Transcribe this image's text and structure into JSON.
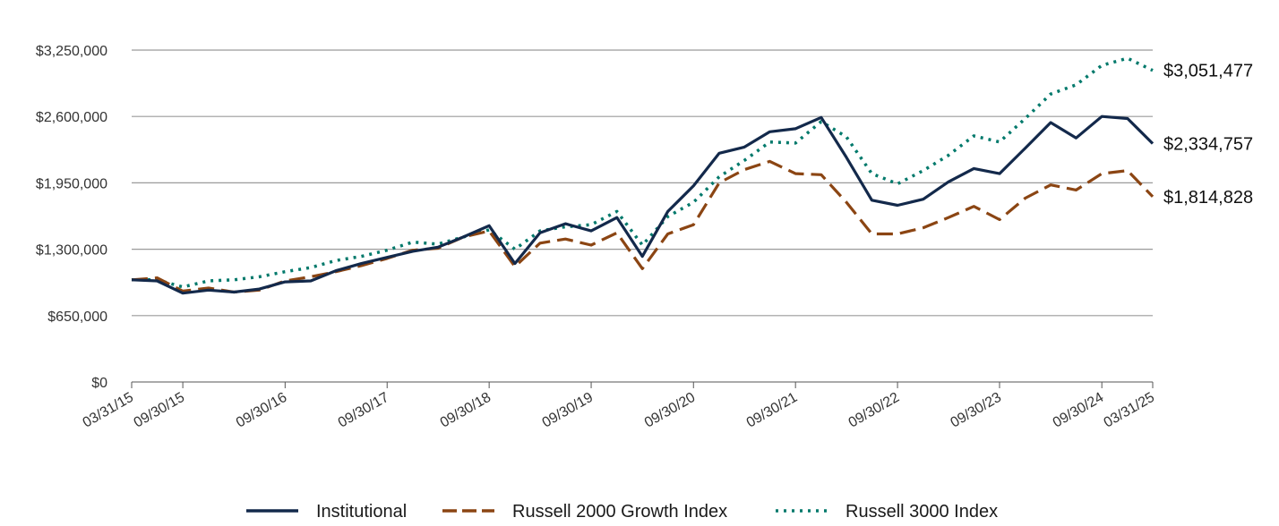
{
  "chart_data": {
    "type": "line",
    "title": "",
    "xlabel": "",
    "ylabel": "",
    "x_tick_labels": [
      "03/31/15",
      "09/30/15",
      "09/30/16",
      "09/30/17",
      "09/30/18",
      "09/30/19",
      "09/30/20",
      "09/30/21",
      "09/30/22",
      "09/30/23",
      "09/30/24",
      "03/31/25"
    ],
    "y_tick_labels": [
      "$0",
      "$650,000",
      "$1,300,000",
      "$1,950,000",
      "$2,600,000",
      "$3,250,000"
    ],
    "ylim": [
      0,
      3250000
    ],
    "grid": true,
    "legend_position": "bottom",
    "x": [
      "03/31/15",
      "06/30/15",
      "09/30/15",
      "12/31/15",
      "03/31/16",
      "06/30/16",
      "09/30/16",
      "12/31/16",
      "03/31/17",
      "06/30/17",
      "09/30/17",
      "12/31/17",
      "03/31/18",
      "06/30/18",
      "09/30/18",
      "12/31/18",
      "03/31/19",
      "06/30/19",
      "09/30/19",
      "12/31/19",
      "03/31/20",
      "06/30/20",
      "09/30/20",
      "12/31/20",
      "03/31/21",
      "06/30/21",
      "09/30/21",
      "12/31/21",
      "03/31/22",
      "06/30/22",
      "09/30/22",
      "12/31/22",
      "03/31/23",
      "06/30/23",
      "09/30/23",
      "12/31/23",
      "03/31/24",
      "06/30/24",
      "09/30/24",
      "12/31/24",
      "03/31/25"
    ],
    "series": [
      {
        "name": "Institutional",
        "color": "#13294b",
        "style": "solid",
        "end_label": "$2,334,757",
        "values": [
          1000000,
          990000,
          870000,
          900000,
          880000,
          910000,
          980000,
          990000,
          1090000,
          1160000,
          1220000,
          1280000,
          1320000,
          1420000,
          1530000,
          1160000,
          1460000,
          1550000,
          1480000,
          1610000,
          1230000,
          1670000,
          1920000,
          2240000,
          2300000,
          2450000,
          2480000,
          2590000,
          2200000,
          1780000,
          1730000,
          1790000,
          1960000,
          2090000,
          2040000,
          2290000,
          2540000,
          2390000,
          2600000,
          2580000,
          2334757
        ]
      },
      {
        "name": "Russell 2000 Growth Index",
        "color": "#8b4513",
        "style": "dashed",
        "end_label": "$1,814,828",
        "values": [
          1000000,
          1020000,
          890000,
          920000,
          880000,
          900000,
          990000,
          1030000,
          1080000,
          1140000,
          1210000,
          1290000,
          1310000,
          1420000,
          1480000,
          1130000,
          1360000,
          1400000,
          1340000,
          1460000,
          1110000,
          1450000,
          1540000,
          1950000,
          2080000,
          2160000,
          2040000,
          2030000,
          1760000,
          1450000,
          1450000,
          1510000,
          1610000,
          1720000,
          1590000,
          1800000,
          1930000,
          1880000,
          2040000,
          2070000,
          1814828
        ]
      },
      {
        "name": "Russell 3000 Index",
        "color": "#00796b",
        "style": "dotted",
        "end_label": "$3,051,477",
        "values": [
          1000000,
          1000000,
          930000,
          990000,
          1000000,
          1030000,
          1080000,
          1120000,
          1190000,
          1230000,
          1290000,
          1370000,
          1350000,
          1420000,
          1490000,
          1300000,
          1480000,
          1520000,
          1540000,
          1670000,
          1340000,
          1620000,
          1760000,
          2010000,
          2170000,
          2350000,
          2340000,
          2550000,
          2400000,
          2040000,
          1940000,
          2070000,
          2220000,
          2410000,
          2350000,
          2580000,
          2820000,
          2910000,
          3100000,
          3170000,
          3051477
        ]
      }
    ]
  }
}
